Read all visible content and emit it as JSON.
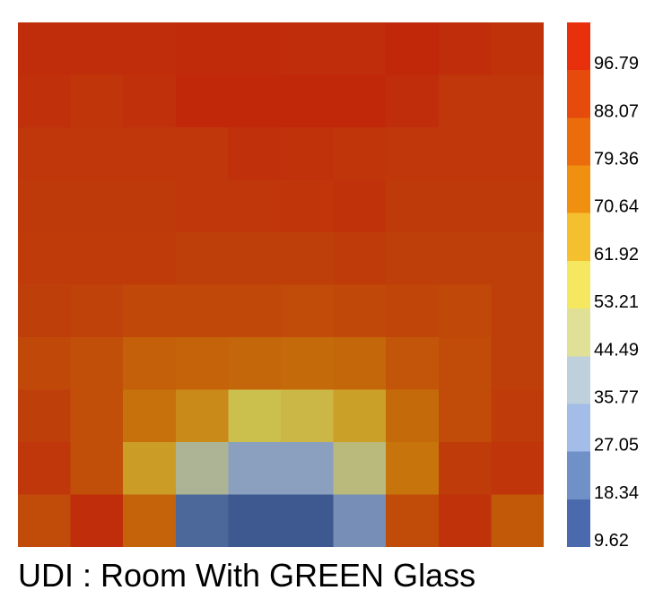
{
  "chart_data": {
    "type": "heatmap",
    "title": "UDI : Room With GREEN Glass",
    "grid": false,
    "values": [
      [
        99,
        99,
        99,
        100,
        100,
        99,
        99,
        101,
        99,
        97
      ],
      [
        98,
        96,
        98,
        103,
        103,
        103,
        102,
        99,
        95,
        95
      ],
      [
        95,
        95,
        95,
        95,
        98,
        97,
        96,
        95,
        95,
        95
      ],
      [
        94,
        94,
        94,
        95,
        95,
        96,
        97,
        94,
        94,
        94
      ],
      [
        93,
        93,
        93,
        92,
        92,
        92,
        93,
        92,
        92,
        92
      ],
      [
        92,
        91,
        89,
        89,
        89,
        88,
        89,
        90,
        89,
        92
      ],
      [
        89,
        87,
        82,
        81,
        80,
        79,
        80,
        85,
        88,
        92
      ],
      [
        92,
        87,
        77,
        71,
        58,
        60,
        66,
        79,
        88,
        93
      ],
      [
        95,
        87,
        67,
        45,
        33,
        33,
        49,
        76,
        93,
        96
      ],
      [
        88,
        99,
        81,
        18,
        12,
        12,
        28,
        88,
        97,
        84
      ]
    ],
    "colorbar": {
      "placement": "right",
      "tick_labels": [
        "96.79",
        "88.07",
        "79.36",
        "70.64",
        "61.92",
        "53.21",
        "44.49",
        "35.77",
        "27.05",
        "18.34",
        "9.62"
      ],
      "colors": [
        "#e8300c",
        "#e64a0c",
        "#ea6c0a",
        "#f09010",
        "#f5c030",
        "#f5e860",
        "#e0e096",
        "#bed0dc",
        "#a3bce8",
        "#7090c8",
        "#4b6aad"
      ]
    }
  }
}
